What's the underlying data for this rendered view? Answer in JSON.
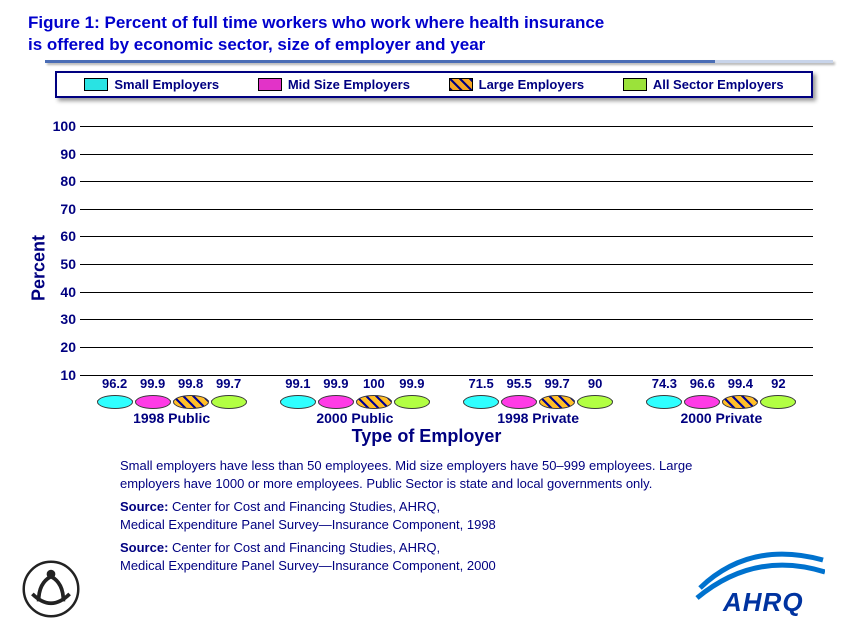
{
  "title_line1": "Figure 1: Percent of full time workers who work where health insurance",
  "title_line2": "is offered by economic sector, size of employer and year",
  "legend": [
    {
      "label": "Small Employers",
      "fill": "#29e3e3",
      "hatch": false
    },
    {
      "label": "Mid Size Employers",
      "fill": "#e233c8",
      "hatch": false
    },
    {
      "label": "Large Employers",
      "fill": "#f5a623",
      "hatch": true
    },
    {
      "label": "All Sector Employers",
      "fill": "#9be23a",
      "hatch": false
    }
  ],
  "chart": {
    "type": "bar",
    "ylabel": "Percent",
    "xlabel": "Type of Employer",
    "ymin": 0,
    "ymax": 105,
    "yticks": [
      10,
      20,
      30,
      40,
      50,
      60,
      70,
      80,
      90,
      100
    ],
    "categories": [
      "1998 Public",
      "2000 Public",
      "1998 Private",
      "2000 Private"
    ],
    "series_colors": [
      "#29e3e3",
      "#e233c8",
      "#f5a623",
      "#9be23a"
    ],
    "series_hatch": [
      false,
      false,
      true,
      false
    ],
    "data": [
      [
        96.2,
        99.9,
        99.8,
        99.7
      ],
      [
        99.1,
        99.9,
        100,
        99.9
      ],
      [
        71.5,
        95.5,
        99.7,
        90.0
      ],
      [
        74.3,
        96.6,
        99.4,
        92.0
      ]
    ],
    "value_decimals": 1,
    "label_color": "#000080",
    "label_fontsize": 13,
    "axis_fontsize": 14,
    "title_fontsize": 18
  },
  "notes": "Small employers have less than 50 employees. Mid size employers have 50–999 employees. Large employers have 1000 or more employees. Public Sector is state and local governments only.",
  "source1_label": "Source:",
  "source1_a": "Center for Cost and Financing Studies, AHRQ,",
  "source1_b": "Medical Expenditure Panel Survey—Insurance Component, 1998",
  "source2_label": "Source:",
  "source2_a": "Center for Cost and Financing Studies, AHRQ,",
  "source2_b": "Medical Expenditure Panel Survey—Insurance Component, 2000",
  "logo_right_text": "AHRQ"
}
